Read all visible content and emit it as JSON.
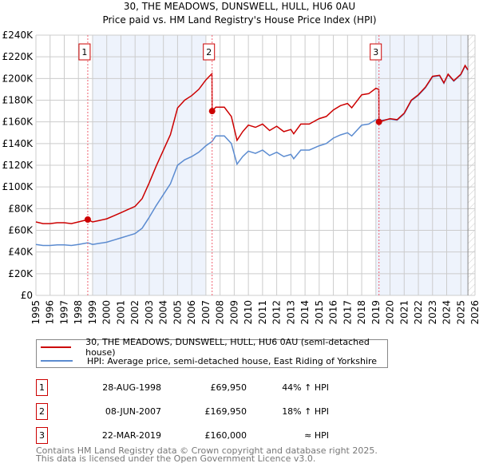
{
  "title_line1": "30, THE MEADOWS, DUNSWELL, HULL, HU6 0AU",
  "title_line2": "Price paid vs. HM Land Registry's House Price Index (HPI)",
  "chart_data": {
    "type": "line",
    "title": "30, THE MEADOWS, DUNSWELL, HULL, HU6 0AU — Price paid vs. HM Land Registry's House Price Index (HPI)",
    "xlim": [
      1995,
      2026
    ],
    "ylim": [
      0,
      240000
    ],
    "x_ticks": [
      1995,
      1996,
      1997,
      1998,
      1999,
      2000,
      2001,
      2002,
      2003,
      2004,
      2005,
      2006,
      2007,
      2008,
      2009,
      2010,
      2011,
      2012,
      2013,
      2014,
      2015,
      2016,
      2017,
      2018,
      2019,
      2020,
      2021,
      2022,
      2023,
      2024,
      2025,
      2026
    ],
    "y_ticks": [
      0,
      20000,
      40000,
      60000,
      80000,
      100000,
      120000,
      140000,
      160000,
      180000,
      200000,
      220000,
      240000
    ],
    "y_tick_labels": [
      "£0",
      "£20K",
      "£40K",
      "£60K",
      "£80K",
      "£100K",
      "£120K",
      "£140K",
      "£160K",
      "£180K",
      "£200K",
      "£220K",
      "£240K"
    ],
    "grid": true,
    "colors": {
      "property": "#cc0000",
      "hpi": "#5b8bd0",
      "shade": "#eef3fc",
      "marker_box": "#cc0000"
    },
    "shaded_ranges": [
      [
        1999,
        2007
      ],
      [
        2019,
        2025.5
      ]
    ],
    "hatched_range": [
      2025.5,
      2026
    ],
    "series": [
      {
        "name": "30, THE MEADOWS, DUNSWELL, HULL, HU6 0AU (semi-detached house)",
        "key": "property",
        "points": [
          [
            1995,
            67.7
          ],
          [
            1995.5,
            66.2
          ],
          [
            1996,
            66.2
          ],
          [
            1996.5,
            67
          ],
          [
            1997,
            67
          ],
          [
            1997.5,
            66.2
          ],
          [
            1998,
            67.7
          ],
          [
            1998.66,
            69.9
          ],
          [
            1999,
            67.7
          ],
          [
            1999.5,
            69.1
          ],
          [
            2000,
            70.6
          ],
          [
            2000.5,
            73.4
          ],
          [
            2001,
            76.3
          ],
          [
            2001.5,
            79.2
          ],
          [
            2002,
            82.1
          ],
          [
            2002.5,
            89.3
          ],
          [
            2003,
            103.7
          ],
          [
            2003.5,
            119.5
          ],
          [
            2004,
            133.9
          ],
          [
            2004.5,
            148.3
          ],
          [
            2005,
            172.8
          ],
          [
            2005.5,
            180
          ],
          [
            2006,
            184.3
          ],
          [
            2006.5,
            190
          ],
          [
            2007,
            198.7
          ],
          [
            2007.43,
            204.5
          ],
          [
            2007.44,
            170
          ],
          [
            2007.7,
            173.5
          ],
          [
            2008.3,
            173.5
          ],
          [
            2008.8,
            165
          ],
          [
            2009.2,
            143
          ],
          [
            2009.6,
            151
          ],
          [
            2010,
            157
          ],
          [
            2010.5,
            155
          ],
          [
            2011,
            158
          ],
          [
            2011.5,
            152
          ],
          [
            2012,
            156
          ],
          [
            2012.5,
            151
          ],
          [
            2013,
            153
          ],
          [
            2013.2,
            149
          ],
          [
            2013.7,
            158
          ],
          [
            2014.3,
            158
          ],
          [
            2015,
            163
          ],
          [
            2015.5,
            165
          ],
          [
            2016,
            171
          ],
          [
            2016.5,
            175
          ],
          [
            2017,
            177
          ],
          [
            2017.3,
            173
          ],
          [
            2018,
            185
          ],
          [
            2018.5,
            186
          ],
          [
            2019,
            191
          ],
          [
            2019.21,
            190
          ],
          [
            2019.22,
            160
          ],
          [
            2020,
            163
          ],
          [
            2020.5,
            162
          ],
          [
            2021,
            168
          ],
          [
            2021.5,
            180
          ],
          [
            2022,
            185
          ],
          [
            2022.5,
            192
          ],
          [
            2023,
            202
          ],
          [
            2023.5,
            203
          ],
          [
            2023.8,
            196
          ],
          [
            2024.1,
            204
          ],
          [
            2024.5,
            198
          ],
          [
            2025,
            204
          ],
          [
            2025.3,
            212
          ],
          [
            2025.5,
            208
          ]
        ]
      },
      {
        "name": "HPI: Average price, semi-detached house, East Riding of Yorkshire",
        "key": "hpi",
        "points": [
          [
            1995,
            47
          ],
          [
            1995.5,
            46
          ],
          [
            1996,
            46
          ],
          [
            1996.5,
            46.5
          ],
          [
            1997,
            46.5
          ],
          [
            1997.5,
            46
          ],
          [
            1998,
            47
          ],
          [
            1998.66,
            48.5
          ],
          [
            1999,
            47
          ],
          [
            1999.5,
            48
          ],
          [
            2000,
            49
          ],
          [
            2000.5,
            51
          ],
          [
            2001,
            53
          ],
          [
            2001.5,
            55
          ],
          [
            2002,
            57
          ],
          [
            2002.5,
            62
          ],
          [
            2003,
            72
          ],
          [
            2003.5,
            83
          ],
          [
            2004,
            93
          ],
          [
            2004.5,
            103
          ],
          [
            2005,
            120
          ],
          [
            2005.5,
            125
          ],
          [
            2006,
            128
          ],
          [
            2006.5,
            132
          ],
          [
            2007,
            138
          ],
          [
            2007.44,
            142
          ],
          [
            2007.7,
            147
          ],
          [
            2008.3,
            147
          ],
          [
            2008.8,
            140
          ],
          [
            2009.2,
            121
          ],
          [
            2009.6,
            128
          ],
          [
            2010,
            133
          ],
          [
            2010.5,
            131
          ],
          [
            2011,
            134
          ],
          [
            2011.5,
            129
          ],
          [
            2012,
            132
          ],
          [
            2012.5,
            128
          ],
          [
            2013,
            130
          ],
          [
            2013.2,
            126
          ],
          [
            2013.7,
            134
          ],
          [
            2014.3,
            134
          ],
          [
            2015,
            138
          ],
          [
            2015.5,
            140
          ],
          [
            2016,
            145
          ],
          [
            2016.5,
            148
          ],
          [
            2017,
            150
          ],
          [
            2017.3,
            147
          ],
          [
            2018,
            157
          ],
          [
            2018.5,
            158
          ],
          [
            2019,
            162
          ],
          [
            2019.22,
            161
          ],
          [
            2020,
            162.5
          ],
          [
            2020.5,
            161.5
          ],
          [
            2021,
            167.5
          ],
          [
            2021.5,
            179.5
          ],
          [
            2022,
            184.5
          ],
          [
            2022.5,
            191.5
          ],
          [
            2023,
            201.5
          ],
          [
            2023.5,
            202.5
          ],
          [
            2023.8,
            195.5
          ],
          [
            2024.1,
            203.5
          ],
          [
            2024.5,
            197.5
          ],
          [
            2025,
            203.5
          ],
          [
            2025.3,
            211.5
          ],
          [
            2025.5,
            207.5
          ]
        ]
      }
    ],
    "y_unit_multiplier": 1000,
    "sales": [
      {
        "label": "1",
        "year": 1998.66,
        "price": 69950
      },
      {
        "label": "2",
        "year": 2007.44,
        "price": 169950
      },
      {
        "label": "3",
        "year": 2019.22,
        "price": 160000
      }
    ]
  },
  "legend": [
    {
      "label": "30, THE MEADOWS, DUNSWELL, HULL, HU6 0AU (semi-detached house)",
      "color": "#cc0000"
    },
    {
      "label": "HPI: Average price, semi-detached house, East Riding of Yorkshire",
      "color": "#5b8bd0"
    }
  ],
  "sales_table": [
    {
      "num": "1",
      "date": "28-AUG-1998",
      "price": "£69,950",
      "hpi": "44% ↑ HPI"
    },
    {
      "num": "2",
      "date": "08-JUN-2007",
      "price": "£169,950",
      "hpi": "18% ↑ HPI"
    },
    {
      "num": "3",
      "date": "22-MAR-2019",
      "price": "£160,000",
      "hpi": "≈ HPI"
    }
  ],
  "footer": {
    "line1": "Contains HM Land Registry data © Crown copyright and database right 2025.",
    "line2": "This data is licensed under the Open Government Licence v3.0."
  }
}
